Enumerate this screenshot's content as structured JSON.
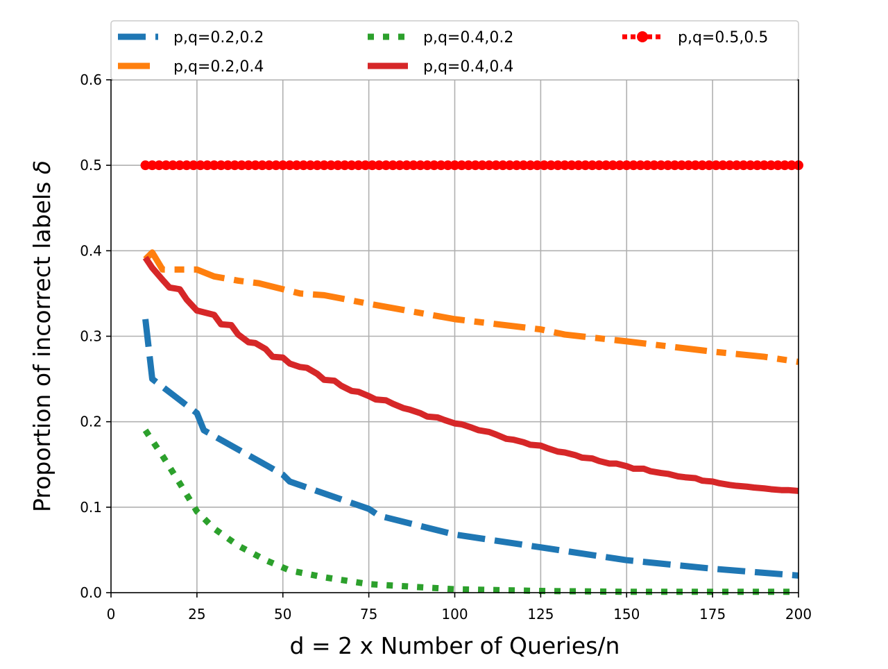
{
  "chart_data": {
    "type": "line",
    "title": "",
    "xlabel": "d = 2 x Number of Queries/n",
    "ylabel": "Proportion of incorrect labels",
    "ylabel_symbol": "δ",
    "xlim": [
      0,
      200
    ],
    "ylim": [
      0.0,
      0.6
    ],
    "x_ticks": [
      "0",
      "25",
      "50",
      "75",
      "100",
      "125",
      "150",
      "175",
      "200"
    ],
    "y_ticks": [
      "0.0",
      "0.1",
      "0.2",
      "0.3",
      "0.4",
      "0.5",
      "0.6"
    ],
    "grid": true,
    "legend_position": "top",
    "series": [
      {
        "name": "p,q=0.2,0.2",
        "color": "#1f77b4",
        "line_style": "dashed",
        "x": [
          10,
          12,
          25,
          27,
          47,
          50,
          52,
          75,
          78,
          100,
          125,
          150,
          175,
          200
        ],
        "y": [
          0.32,
          0.25,
          0.21,
          0.19,
          0.145,
          0.138,
          0.13,
          0.098,
          0.09,
          0.068,
          0.053,
          0.038,
          0.028,
          0.02
        ]
      },
      {
        "name": "p,q=0.2,0.4",
        "color": "#ff7f0e",
        "line_style": "dashdot",
        "x": [
          10,
          12,
          15,
          25,
          30,
          37,
          43,
          50,
          55,
          62,
          75,
          100,
          125,
          132,
          150,
          175,
          190,
          200
        ],
        "y": [
          0.39,
          0.398,
          0.378,
          0.378,
          0.37,
          0.365,
          0.362,
          0.355,
          0.35,
          0.348,
          0.338,
          0.32,
          0.308,
          0.302,
          0.294,
          0.282,
          0.276,
          0.27
        ]
      },
      {
        "name": "p,q=0.4,0.2",
        "color": "#2ca02c",
        "line_style": "dotted",
        "x": [
          10,
          15,
          20,
          25,
          30,
          37,
          45,
          52,
          62,
          75,
          100,
          125,
          150,
          175,
          200
        ],
        "y": [
          0.19,
          0.16,
          0.128,
          0.095,
          0.075,
          0.055,
          0.038,
          0.026,
          0.018,
          0.01,
          0.004,
          0.002,
          0.001,
          0.001,
          0.001
        ]
      },
      {
        "name": "p,q=0.4,0.4",
        "color": "#d62728",
        "line_style": "solid",
        "x": [
          10,
          12,
          15,
          17,
          20,
          22,
          25,
          27,
          30,
          32,
          35,
          37,
          40,
          42,
          45,
          47,
          50,
          52,
          55,
          57,
          60,
          62,
          65,
          67,
          70,
          72,
          75,
          77,
          80,
          82,
          85,
          87,
          90,
          92,
          95,
          97,
          100,
          102,
          105,
          107,
          110,
          112,
          115,
          117,
          120,
          122,
          125,
          127,
          130,
          132,
          135,
          137,
          140,
          142,
          145,
          147,
          150,
          152,
          155,
          157,
          160,
          162,
          165,
          167,
          170,
          172,
          175,
          177,
          180,
          182,
          185,
          187,
          190,
          192,
          195,
          197,
          200
        ],
        "y": [
          0.392,
          0.38,
          0.366,
          0.357,
          0.355,
          0.343,
          0.33,
          0.328,
          0.325,
          0.314,
          0.313,
          0.302,
          0.293,
          0.292,
          0.285,
          0.276,
          0.275,
          0.268,
          0.264,
          0.263,
          0.256,
          0.249,
          0.248,
          0.242,
          0.236,
          0.235,
          0.23,
          0.226,
          0.225,
          0.221,
          0.216,
          0.214,
          0.21,
          0.206,
          0.205,
          0.202,
          0.198,
          0.197,
          0.193,
          0.19,
          0.188,
          0.185,
          0.18,
          0.179,
          0.176,
          0.173,
          0.172,
          0.169,
          0.165,
          0.164,
          0.161,
          0.158,
          0.157,
          0.154,
          0.151,
          0.151,
          0.148,
          0.145,
          0.145,
          0.142,
          0.14,
          0.139,
          0.136,
          0.135,
          0.134,
          0.131,
          0.13,
          0.128,
          0.126,
          0.125,
          0.124,
          0.123,
          0.122,
          0.121,
          0.12,
          0.12,
          0.119
        ]
      },
      {
        "name": "p,q=0.5,0.5",
        "color": "#ff0000",
        "line_style": "dotted-markers",
        "x": [
          10,
          200
        ],
        "y": [
          0.5,
          0.5
        ]
      }
    ]
  }
}
